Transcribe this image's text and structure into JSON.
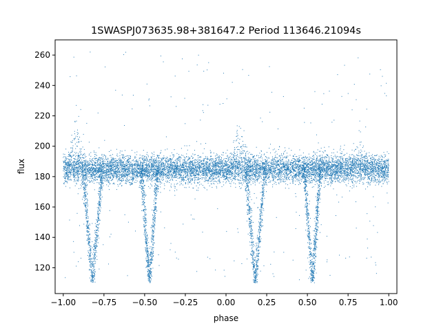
{
  "chart_data": {
    "type": "scatter",
    "title": "1SWASPJ073635.98+381647.2 Period 113646.21094s",
    "xlabel": "phase",
    "ylabel": "flux",
    "xlim": [
      -1.05,
      1.05
    ],
    "ylim": [
      103,
      270
    ],
    "xticks": [
      -1.0,
      -0.75,
      -0.5,
      -0.25,
      0.0,
      0.25,
      0.5,
      0.75,
      1.0
    ],
    "xtick_labels": [
      "−1.00",
      "−0.75",
      "−0.50",
      "−0.25",
      "0.00",
      "0.25",
      "0.50",
      "0.75",
      "1.00"
    ],
    "yticks": [
      120,
      140,
      160,
      180,
      200,
      220,
      240,
      260
    ],
    "ytick_labels": [
      "120",
      "140",
      "160",
      "180",
      "200",
      "220",
      "240",
      "260"
    ],
    "grid": false,
    "marker_color": "#1f77b4",
    "series": [
      {
        "baseline_flux": 185,
        "baseline_scatter": 4.5,
        "eclipses": [
          {
            "phase": -0.82,
            "min_flux": 110,
            "half_width": 0.06
          },
          {
            "phase": -0.47,
            "min_flux": 110,
            "half_width": 0.05
          },
          {
            "phase": 0.18,
            "min_flux": 110,
            "half_width": 0.06
          },
          {
            "phase": 0.53,
            "min_flux": 110,
            "half_width": 0.05
          }
        ],
        "brightenings": [
          {
            "phase": -0.92,
            "peak_flux": 215
          },
          {
            "phase": 0.08,
            "peak_flux": 215
          },
          {
            "phase": 0.82,
            "peak_flux": 205
          }
        ],
        "x_range": [
          -1.0,
          1.0
        ],
        "y_range": [
          110,
          262
        ]
      }
    ]
  }
}
